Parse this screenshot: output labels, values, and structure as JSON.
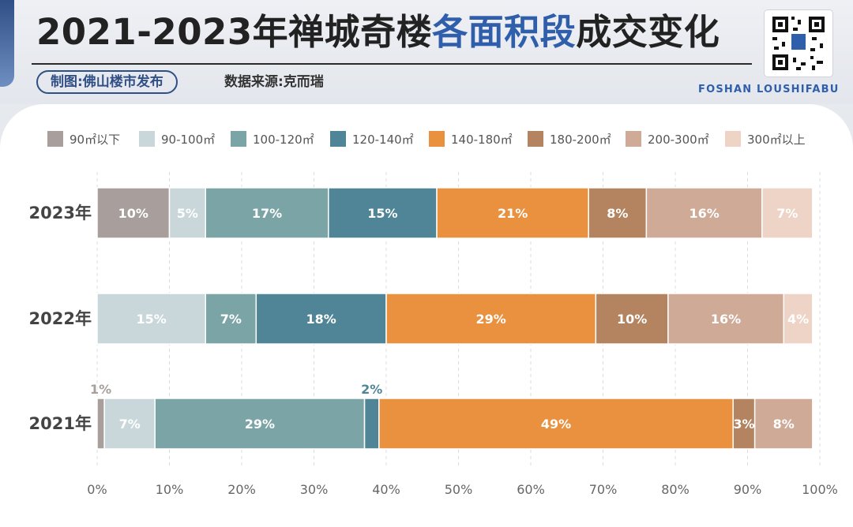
{
  "header": {
    "title_prefix": "2021-2023年禅城奇楼",
    "title_highlight": "各面积段",
    "title_suffix": "成交变化",
    "credit": "制图:佛山楼市发布",
    "source": "数据来源:克而瑞",
    "brand": "FOSHAN LOUSHIFABU",
    "title_color": "#222222",
    "highlight_color": "#2f5fab"
  },
  "chart_data": {
    "type": "bar",
    "orientation": "horizontal",
    "stacked": true,
    "categories": [
      "2023年",
      "2022年",
      "2021年"
    ],
    "series": [
      {
        "name": "90㎡以下",
        "color": "#a89f9c",
        "values": [
          10,
          0,
          1
        ],
        "labels": [
          "10%",
          "",
          "1%"
        ]
      },
      {
        "name": "90-100㎡",
        "color": "#c9d7da",
        "values": [
          5,
          15,
          7
        ],
        "labels": [
          "5%",
          "15%",
          "7%"
        ]
      },
      {
        "name": "100-120㎡",
        "color": "#7ba4a6",
        "values": [
          17,
          7,
          29
        ],
        "labels": [
          "17%",
          "7%",
          "29%"
        ]
      },
      {
        "name": "120-140㎡",
        "color": "#4f8597",
        "values": [
          15,
          18,
          2
        ],
        "labels": [
          "15%",
          "18%",
          "2%"
        ]
      },
      {
        "name": "140-180㎡",
        "color": "#e9913f",
        "values": [
          21,
          29,
          49
        ],
        "labels": [
          "21%",
          "29%",
          "49%"
        ]
      },
      {
        "name": "180-200㎡",
        "color": "#b3845f",
        "values": [
          8,
          10,
          3
        ],
        "labels": [
          "8%",
          "10%",
          "3%"
        ]
      },
      {
        "name": "200-300㎡",
        "color": "#ceaa97",
        "values": [
          16,
          16,
          8
        ],
        "labels": [
          "16%",
          "16%",
          "8%"
        ]
      },
      {
        "name": "300㎡以上",
        "color": "#edd4c7",
        "values": [
          7,
          4,
          0
        ],
        "labels": [
          "7%",
          "4%",
          ""
        ]
      }
    ],
    "xlim": [
      0,
      100
    ],
    "xticks": [
      "0%",
      "10%",
      "20%",
      "30%",
      "40%",
      "50%",
      "60%",
      "70%",
      "80%",
      "90%",
      "100%"
    ],
    "grid": "vertical dashed",
    "legend": "top"
  }
}
